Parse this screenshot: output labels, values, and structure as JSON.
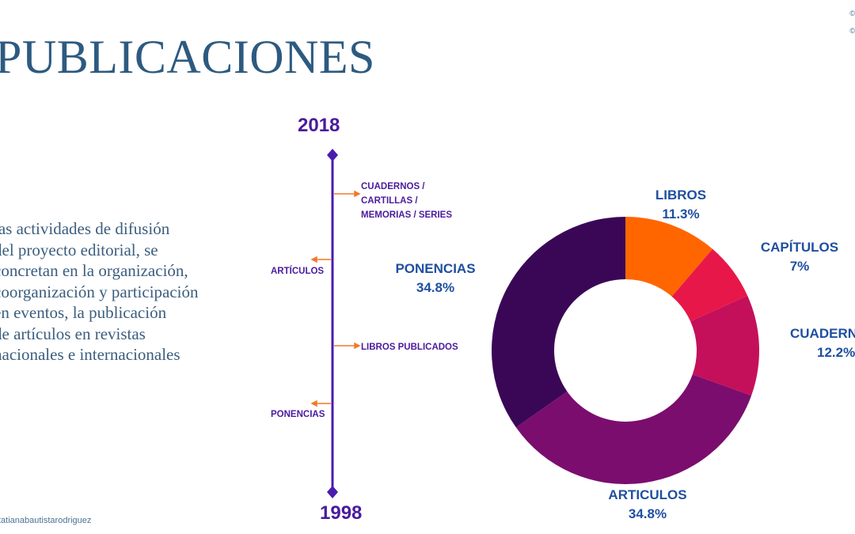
{
  "title": "PUBLICACIONES",
  "corner_marks": [
    "©",
    "©"
  ],
  "body_text": [
    "las actividades de difusión",
    "del proyecto editorial,  se",
    "concretan en la organización,",
    "coorganización y participación",
    "en eventos, la publicación",
    "de artículos  en revistas",
    "nacionales e internacionales"
  ],
  "credit": "tatianabautistarodriguez",
  "timeline": {
    "year_top": "2018",
    "year_bottom": "1998",
    "events": [
      {
        "lines": [
          "CUADERNOS /",
          "CARTILLAS /",
          "MEMORIAS / SERIES"
        ],
        "side": "right"
      },
      {
        "lines": [
          "ARTÍCULOS"
        ],
        "side": "left"
      },
      {
        "lines": [
          "LIBROS PUBLICADOS"
        ],
        "side": "right"
      },
      {
        "lines": [
          "PONENCIAS"
        ],
        "side": "left"
      }
    ],
    "colors": {
      "line": "#4a1bb0",
      "arrow": "#f07a2a"
    }
  },
  "chart_data": {
    "type": "pie",
    "donut": true,
    "slices": [
      {
        "label": "LIBROS",
        "value": 11.3,
        "value_label": "11.3%",
        "color": "#ff6600"
      },
      {
        "label": "CAPÍTULOS",
        "value": 7,
        "value_label": "7%",
        "color": "#e8174a"
      },
      {
        "label": "CUADERNOS",
        "value": 12.2,
        "value_label": "12.2%",
        "color": "#c4105a"
      },
      {
        "label": "ARTICULOS",
        "value": 34.8,
        "value_label": "34.8%",
        "color": "#7b0d6e"
      },
      {
        "label": "PONENCIAS",
        "value": 34.8,
        "value_label": "34.8%",
        "color": "#3a0757"
      }
    ],
    "label_color": "#1f4fa0"
  }
}
